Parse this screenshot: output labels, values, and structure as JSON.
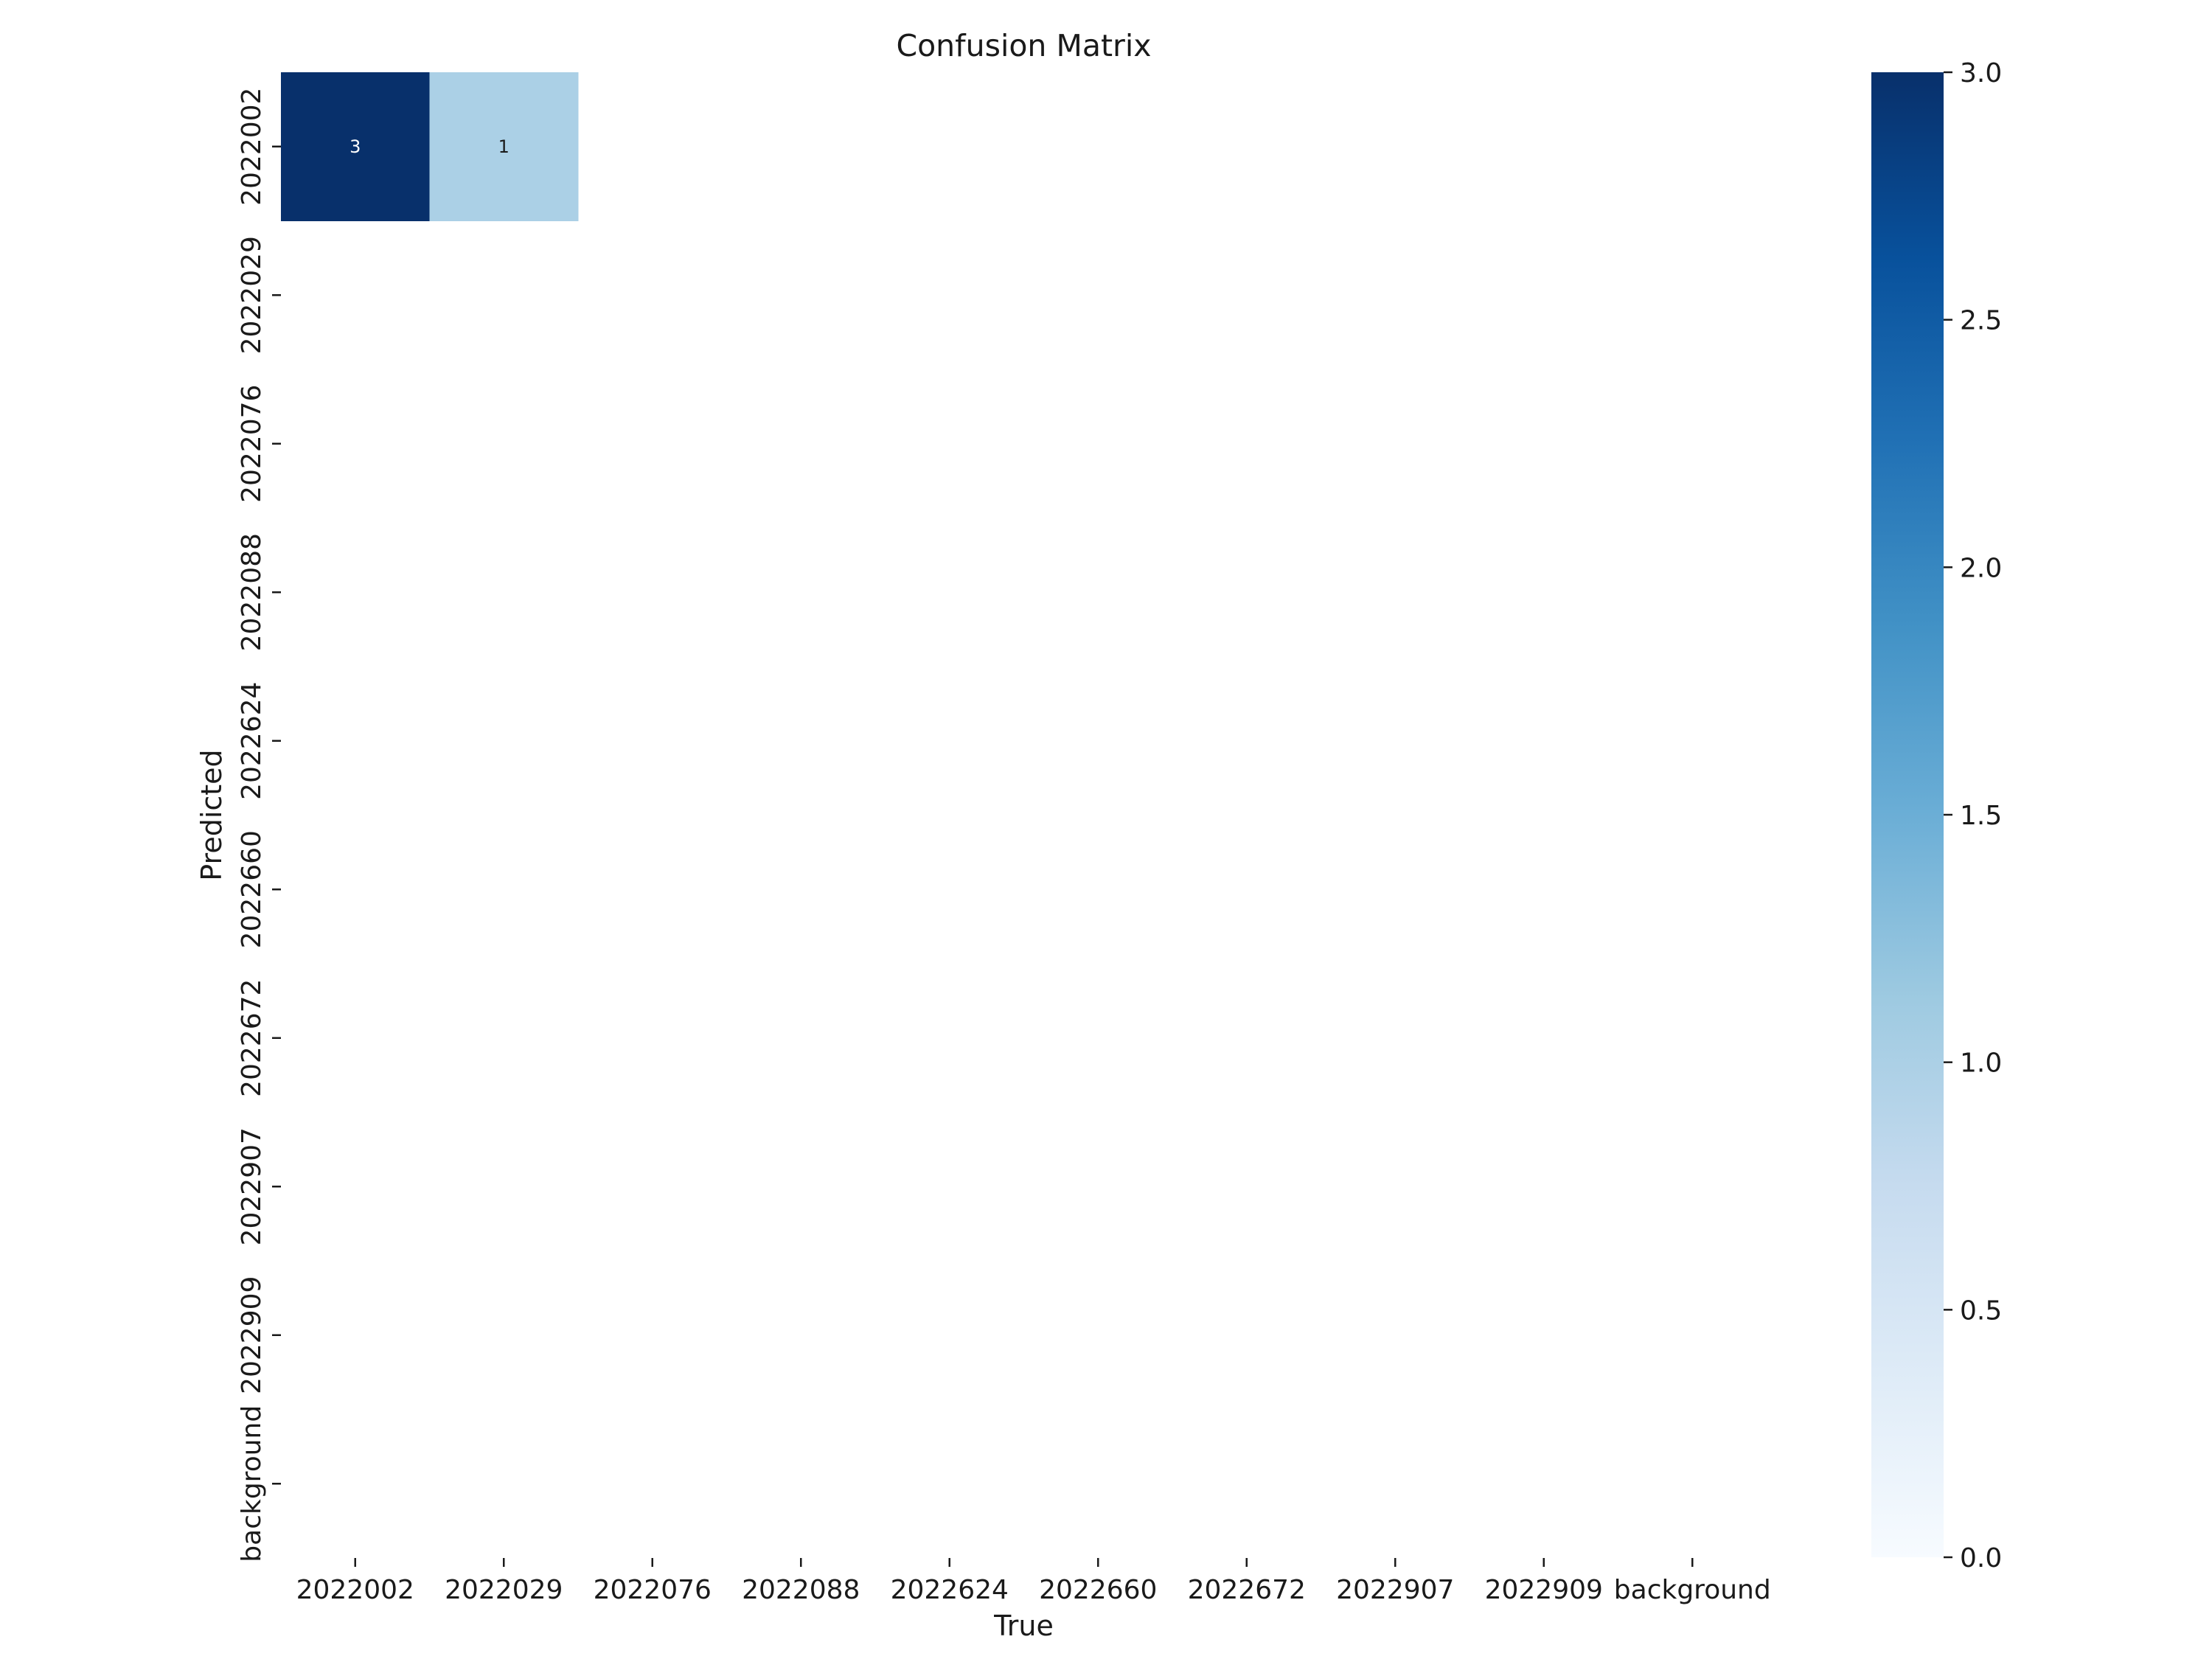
{
  "chart_data": {
    "type": "heatmap",
    "title": "Confusion Matrix",
    "xlabel": "True",
    "ylabel": "Predicted",
    "x_categories": [
      "2022002",
      "2022029",
      "2022076",
      "2022088",
      "2022624",
      "2022660",
      "2022672",
      "2022907",
      "2022909",
      "background"
    ],
    "y_categories": [
      "2022002",
      "2022029",
      "2022076",
      "2022088",
      "2022624",
      "2022660",
      "2022672",
      "2022907",
      "2022909",
      "background"
    ],
    "values": [
      [
        3,
        1,
        0,
        0,
        0,
        0,
        0,
        0,
        0,
        0
      ],
      [
        0,
        0,
        0,
        0,
        0,
        0,
        0,
        0,
        0,
        0
      ],
      [
        0,
        0,
        0,
        0,
        0,
        0,
        0,
        0,
        0,
        0
      ],
      [
        0,
        0,
        0,
        0,
        0,
        0,
        0,
        0,
        0,
        0
      ],
      [
        0,
        0,
        0,
        0,
        0,
        0,
        0,
        0,
        0,
        0
      ],
      [
        0,
        0,
        0,
        0,
        0,
        0,
        0,
        0,
        0,
        0
      ],
      [
        0,
        0,
        0,
        0,
        0,
        0,
        0,
        0,
        0,
        0
      ],
      [
        0,
        0,
        0,
        0,
        0,
        0,
        0,
        0,
        0,
        0
      ],
      [
        0,
        0,
        0,
        0,
        0,
        0,
        0,
        0,
        0,
        0
      ],
      [
        0,
        0,
        0,
        0,
        0,
        0,
        0,
        0,
        0,
        0
      ]
    ],
    "annotations": [
      {
        "row": 0,
        "col": 0,
        "text": "3"
      },
      {
        "row": 0,
        "col": 1,
        "text": "1"
      }
    ],
    "colormap": "Blues",
    "colormap_stops": [
      "#f7fbff",
      "#deebf7",
      "#c6dbef",
      "#9ecae1",
      "#6baed6",
      "#4292c6",
      "#2171b5",
      "#08519c",
      "#08306b"
    ],
    "zero_cells_blank": true,
    "colorbar": {
      "range": [
        0.0,
        3.0
      ],
      "ticks": [
        "0.0",
        "0.5",
        "1.0",
        "1.5",
        "2.0",
        "2.5",
        "3.0"
      ]
    },
    "grid": false
  }
}
